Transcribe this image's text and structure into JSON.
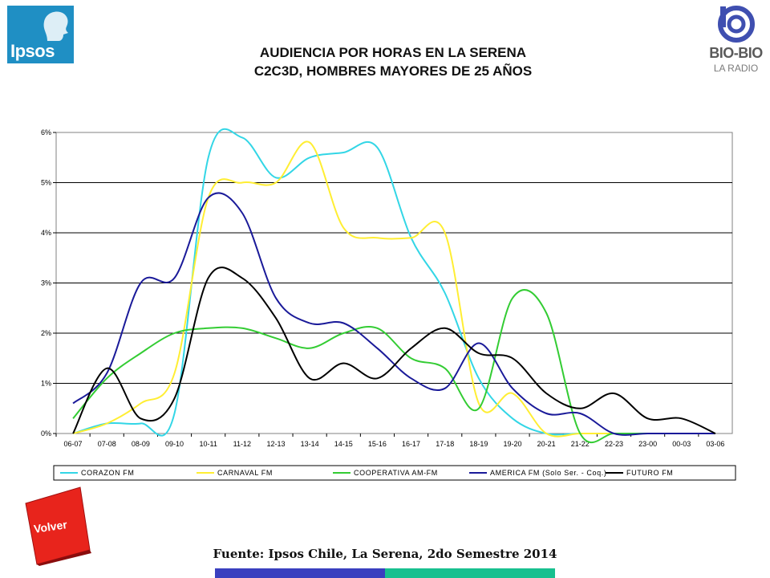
{
  "logos": {
    "left": {
      "text": "Ipsos",
      "icon": "ipsos-head-icon",
      "color": "#1f8fc4"
    },
    "right": {
      "name": "BIO-BIO",
      "subtitle": "LA RADIO",
      "icon": "biobio-radio-icon"
    }
  },
  "header": {
    "title_line1": "AUDIENCIA POR HORAS EN LA SERENA",
    "title_line2": "C2C3D, HOMBRES MAYORES DE 25 AÑOS"
  },
  "chart_data": {
    "type": "line",
    "categories": [
      "06-07",
      "07-08",
      "08-09",
      "09-10",
      "10-11",
      "11-12",
      "12-13",
      "13-14",
      "14-15",
      "15-16",
      "16-17",
      "17-18",
      "18-19",
      "19-20",
      "20-21",
      "21-22",
      "22-23",
      "23-00",
      "00-03",
      "03-06"
    ],
    "ylim": [
      0,
      6
    ],
    "yticks": [
      "0%",
      "1%",
      "2%",
      "3%",
      "4%",
      "5%",
      "6%"
    ],
    "grid": true,
    "legend_position": "bottom",
    "series": [
      {
        "name": "CORAZON FM",
        "color": "#33d6e6",
        "values": [
          0.0,
          0.2,
          0.2,
          0.4,
          5.5,
          5.9,
          5.1,
          5.5,
          5.6,
          5.7,
          3.9,
          2.8,
          1.1,
          0.3,
          0.0,
          0.0,
          0.0,
          0.0,
          0.0,
          0.0
        ]
      },
      {
        "name": "CARNAVAL FM",
        "color": "#ffee33",
        "values": [
          0.0,
          0.2,
          0.6,
          1.2,
          4.7,
          5.0,
          5.0,
          5.8,
          4.1,
          3.9,
          3.9,
          4.0,
          0.6,
          0.8,
          0.0,
          0.0,
          0.0,
          0.0,
          0.0,
          0.0
        ]
      },
      {
        "name": "COOPERATIVA AM-FM",
        "color": "#33cc33",
        "values": [
          0.3,
          1.1,
          1.6,
          2.0,
          2.1,
          2.1,
          1.9,
          1.7,
          2.0,
          2.1,
          1.5,
          1.3,
          0.5,
          2.7,
          2.4,
          0.0,
          0.0,
          0.0,
          0.0,
          0.0
        ]
      },
      {
        "name": "AMERICA FM  (Solo Ser. - Coq.)",
        "color": "#1a1a99",
        "values": [
          0.6,
          1.2,
          3.0,
          3.1,
          4.7,
          4.4,
          2.7,
          2.2,
          2.2,
          1.7,
          1.1,
          0.9,
          1.8,
          0.9,
          0.4,
          0.4,
          0.0,
          0.0,
          0.0,
          0.0
        ]
      },
      {
        "name": "FUTURO FM",
        "color": "#000000",
        "values": [
          0.0,
          1.3,
          0.3,
          0.7,
          3.1,
          3.1,
          2.3,
          1.1,
          1.4,
          1.1,
          1.7,
          2.1,
          1.6,
          1.5,
          0.8,
          0.5,
          0.8,
          0.3,
          0.3,
          0.0
        ]
      }
    ]
  },
  "footer": {
    "volver_label": "Volver",
    "source": "Fuente: Ipsos Chile, La Serena, 2do Semestre 2014"
  }
}
